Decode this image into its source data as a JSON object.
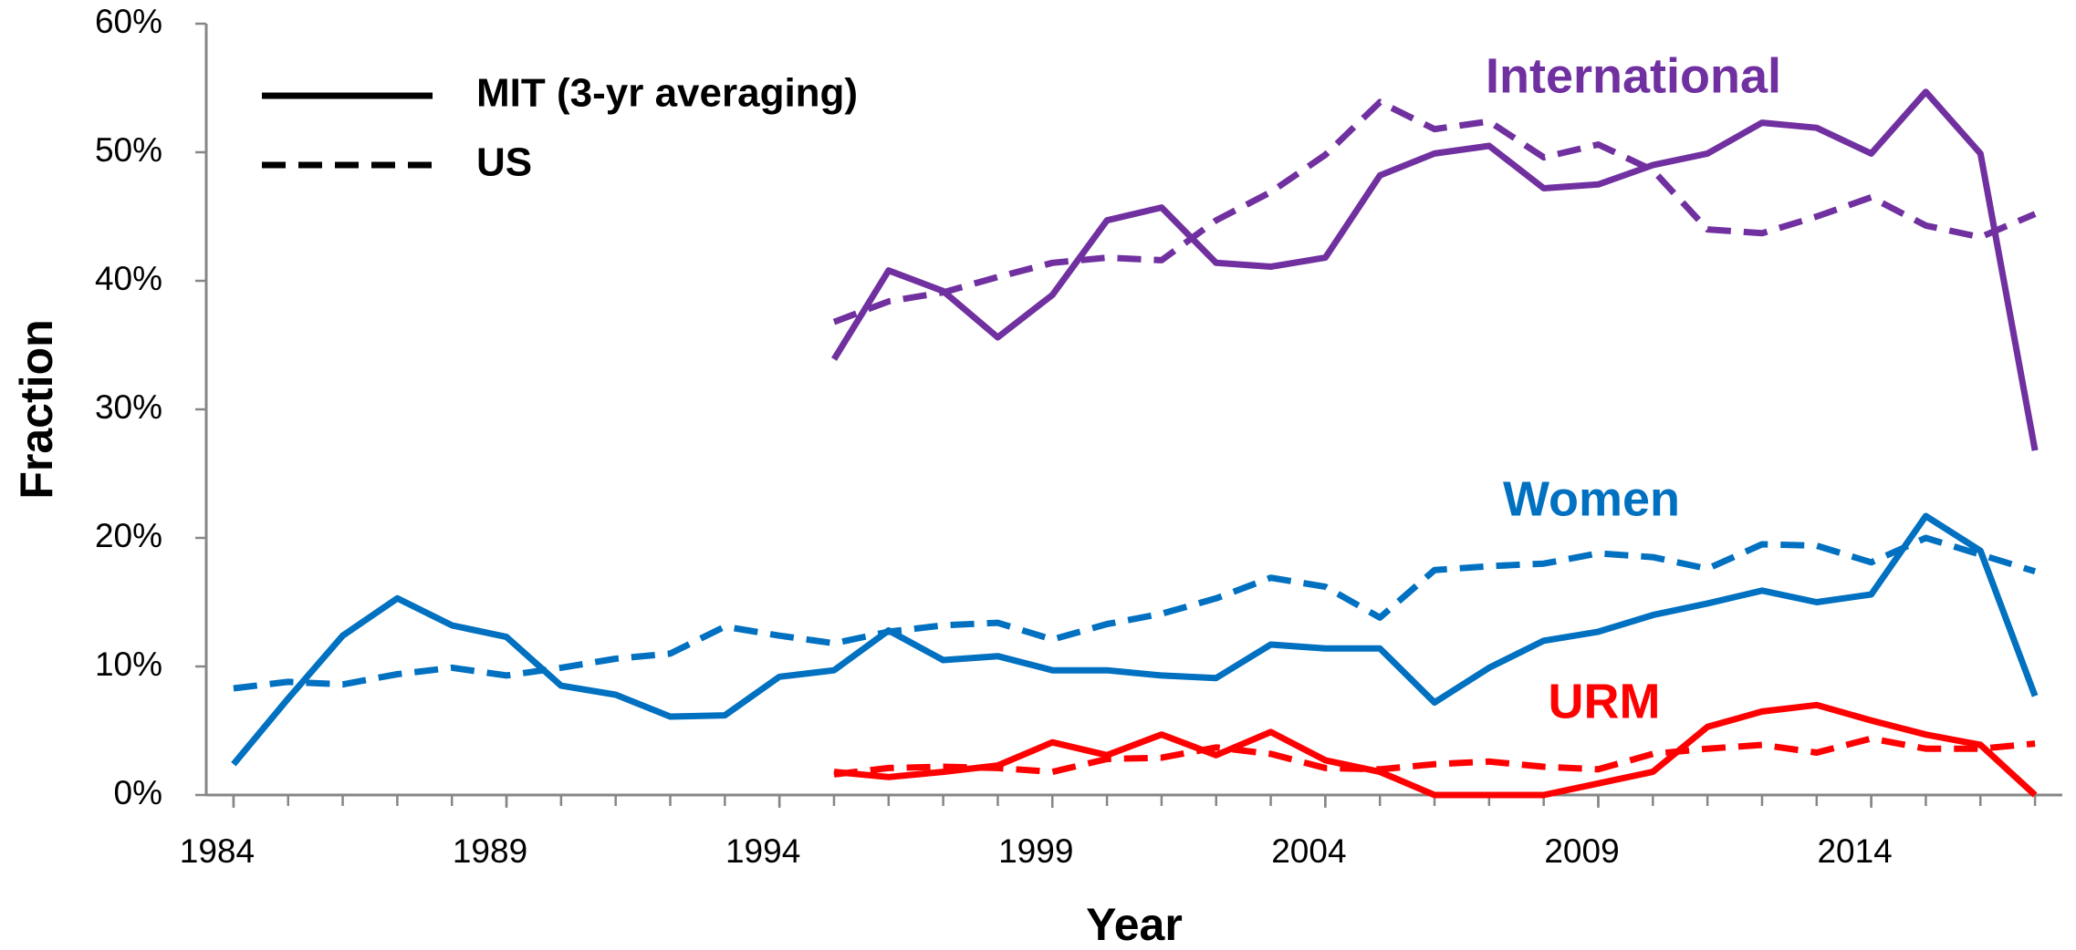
{
  "chart_data": {
    "type": "line",
    "x_label": "Year",
    "y_label": "Fraction",
    "x": [
      1984,
      1985,
      1986,
      1987,
      1988,
      1989,
      1990,
      1991,
      1992,
      1993,
      1994,
      1995,
      1996,
      1997,
      1998,
      1999,
      2000,
      2001,
      2002,
      2003,
      2004,
      2005,
      2006,
      2007,
      2008,
      2009,
      2010,
      2011,
      2012,
      2013,
      2014,
      2015,
      2016,
      2017
    ],
    "xlim": [
      1983.5,
      2017.5
    ],
    "xticks": [
      1984,
      1989,
      1994,
      1999,
      2004,
      2009,
      2014
    ],
    "ylim": [
      0,
      60
    ],
    "yticks": [
      {
        "value": 0,
        "label": "0%"
      },
      {
        "value": 10,
        "label": "10%"
      },
      {
        "value": 20,
        "label": "20%"
      },
      {
        "value": 30,
        "label": "30%"
      },
      {
        "value": 40,
        "label": "40%"
      },
      {
        "value": 50,
        "label": "50%"
      },
      {
        "value": 60,
        "label": "60%"
      }
    ],
    "legend": {
      "position": "upper left",
      "items": [
        {
          "label": "MIT (3-yr averaging)",
          "style": "solid"
        },
        {
          "label": "US",
          "style": "dashed"
        }
      ]
    },
    "series": [
      {
        "name": "International",
        "color": "#7030a0",
        "values": [
          null,
          null,
          null,
          null,
          null,
          null,
          null,
          null,
          null,
          null,
          null,
          33.9,
          40.8,
          39.2,
          35.6,
          38.9,
          44.7,
          45.7,
          41.4,
          41.1,
          41.8,
          48.2,
          49.9,
          50.5,
          47.2,
          47.5,
          49.0,
          49.9,
          52.3,
          51.9,
          49.9,
          54.7,
          49.9,
          26.8
        ],
        "us_values": [
          null,
          null,
          null,
          null,
          null,
          null,
          null,
          null,
          null,
          null,
          null,
          36.8,
          38.4,
          39.1,
          40.3,
          41.4,
          41.8,
          41.6,
          44.7,
          46.9,
          49.8,
          53.9,
          51.8,
          52.4,
          49.6,
          50.6,
          48.6,
          44.0,
          43.7,
          45.0,
          46.5,
          44.3,
          43.4,
          45.2
        ]
      },
      {
        "name": "Women",
        "color": "#0070c0",
        "values": [
          2.4,
          7.5,
          12.4,
          15.3,
          13.2,
          12.3,
          8.5,
          7.8,
          6.1,
          6.2,
          9.2,
          9.7,
          12.8,
          10.5,
          10.8,
          9.7,
          9.7,
          9.3,
          9.1,
          11.7,
          11.4,
          11.4,
          7.2,
          9.9,
          12.0,
          12.7,
          14.0,
          14.9,
          15.9,
          15.0,
          15.6,
          21.7,
          19.0,
          7.7
        ],
        "us_values": [
          8.3,
          8.8,
          8.6,
          9.4,
          9.9,
          9.3,
          9.9,
          10.6,
          11.0,
          13.1,
          12.4,
          11.8,
          12.7,
          13.2,
          13.4,
          12.1,
          13.3,
          14.1,
          15.3,
          16.9,
          16.2,
          13.8,
          17.5,
          17.8,
          18.0,
          18.8,
          18.5,
          17.6,
          19.5,
          19.4,
          18.1,
          20.0,
          18.7,
          17.4
        ]
      },
      {
        "name": "URM",
        "color": "#ff0000",
        "values": [
          null,
          null,
          null,
          null,
          null,
          null,
          null,
          null,
          null,
          null,
          null,
          1.8,
          1.4,
          1.8,
          2.3,
          4.1,
          3.1,
          4.7,
          3.1,
          4.9,
          2.7,
          1.8,
          0,
          0,
          0,
          0.9,
          1.8,
          5.3,
          6.5,
          7.0,
          5.8,
          4.7,
          3.9,
          0
        ],
        "us_values": [
          null,
          null,
          null,
          null,
          null,
          null,
          null,
          null,
          null,
          null,
          null,
          1.6,
          2.1,
          2.2,
          2.1,
          1.8,
          2.8,
          2.9,
          3.7,
          3.2,
          2.1,
          2.0,
          2.4,
          2.6,
          2.2,
          2.0,
          3.2,
          3.6,
          3.9,
          3.3,
          4.4,
          3.6,
          3.6,
          4.0
        ]
      }
    ]
  }
}
